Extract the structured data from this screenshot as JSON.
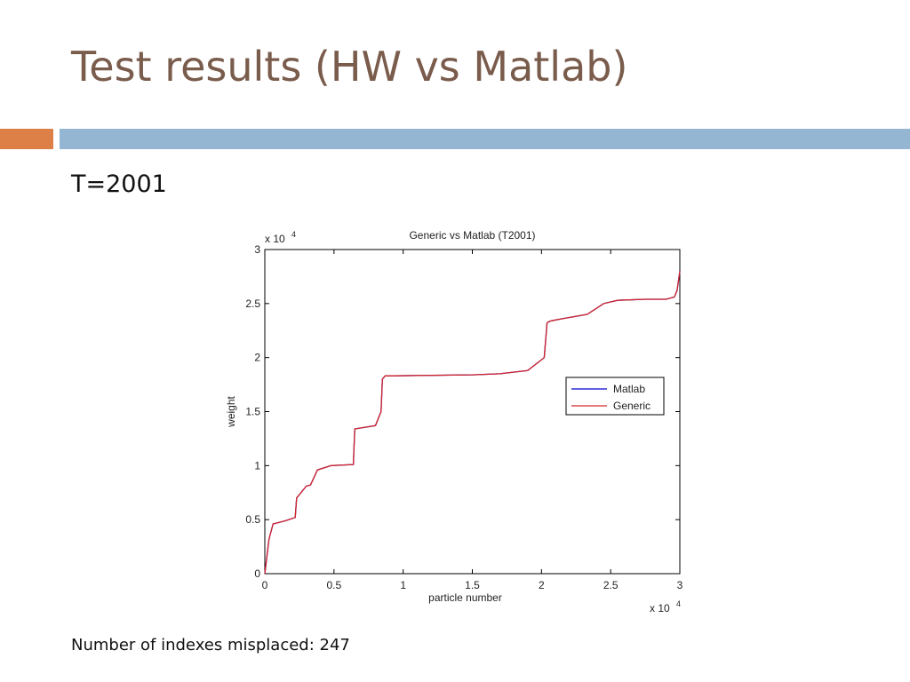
{
  "slide": {
    "title": "Test results (HW vs Matlab)",
    "subtitle": "T=2001",
    "footer": "Number of indexes misplaced: 247"
  },
  "colors": {
    "title": "#7a5c4c",
    "accent": "#dd8047",
    "rule": "#94b6d2",
    "matlab": "#0000cc",
    "generic": "#d62728"
  },
  "chart_data": {
    "type": "line",
    "title": "Generic vs Matlab (T2001)",
    "xlabel": "particle number",
    "ylabel": "weight",
    "x_multiplier": "x 10",
    "x_exponent": "4",
    "y_multiplier": "x 10",
    "y_exponent": "4",
    "xlim": [
      0,
      30000
    ],
    "ylim": [
      0,
      30000
    ],
    "x_ticks": [
      0,
      5000,
      10000,
      15000,
      20000,
      25000,
      30000
    ],
    "x_tick_labels": [
      "0",
      "0.5",
      "1",
      "1.5",
      "2",
      "2.5",
      "3"
    ],
    "y_ticks": [
      0,
      5000,
      10000,
      15000,
      20000,
      25000,
      30000
    ],
    "y_tick_labels": [
      "0",
      "0.5",
      "1",
      "1.5",
      "2",
      "2.5",
      "3"
    ],
    "legend_position": "right",
    "grid": false,
    "series": [
      {
        "name": "Matlab",
        "color": "#0000cc",
        "x": [
          0,
          300,
          600,
          1500,
          2200,
          2300,
          3000,
          3300,
          3800,
          4800,
          6400,
          6500,
          8000,
          8400,
          8500,
          8700,
          15000,
          17000,
          19000,
          20200,
          20400,
          20500,
          20700,
          21500,
          23300,
          24500,
          25500,
          27500,
          29000,
          29600,
          29800,
          30000
        ],
        "y": [
          0,
          3200,
          4600,
          4900,
          5200,
          7000,
          8100,
          8200,
          9600,
          10000,
          10100,
          13400,
          13700,
          15000,
          18000,
          18300,
          18400,
          18500,
          18800,
          20000,
          23200,
          23300,
          23400,
          23600,
          24000,
          25000,
          25300,
          25400,
          25400,
          25600,
          26200,
          28000
        ]
      },
      {
        "name": "Generic",
        "color": "#d62728",
        "x": [
          0,
          300,
          600,
          1500,
          2200,
          2300,
          3000,
          3300,
          3800,
          4800,
          6400,
          6500,
          8000,
          8400,
          8500,
          8700,
          15000,
          17000,
          19000,
          20200,
          20400,
          20500,
          20700,
          21500,
          23300,
          24500,
          25500,
          27500,
          29000,
          29600,
          29800,
          30000
        ],
        "y": [
          0,
          3200,
          4600,
          4900,
          5200,
          7000,
          8100,
          8200,
          9600,
          10000,
          10100,
          13400,
          13700,
          15000,
          18000,
          18300,
          18400,
          18500,
          18800,
          20000,
          23200,
          23300,
          23400,
          23600,
          24000,
          25000,
          25300,
          25400,
          25400,
          25600,
          26200,
          28000
        ]
      }
    ]
  }
}
